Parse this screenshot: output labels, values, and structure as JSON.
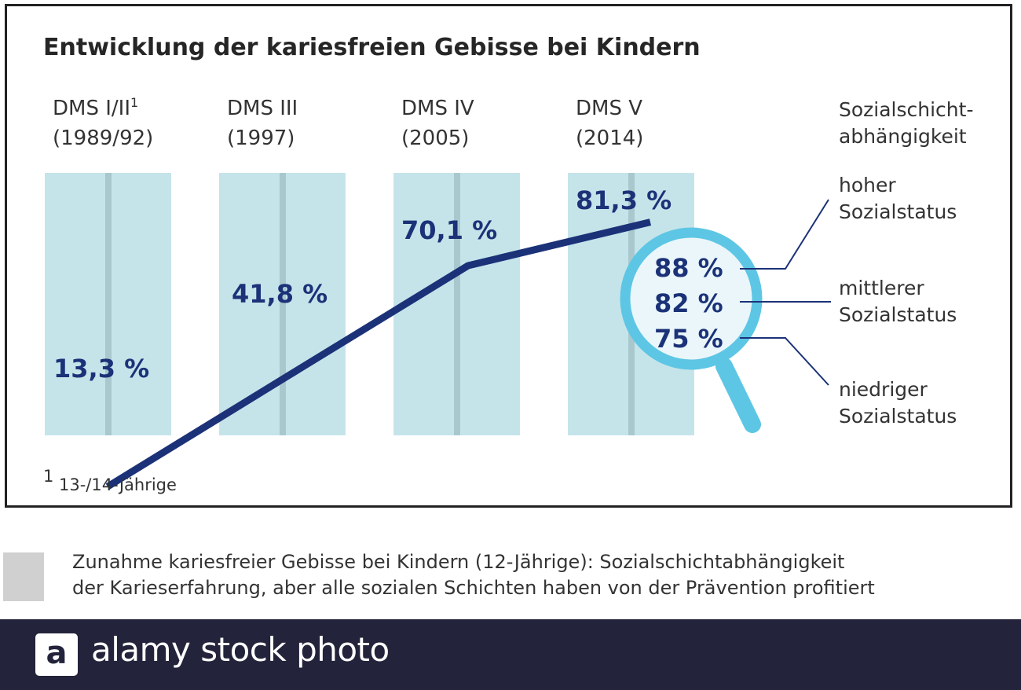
{
  "chart_data": {
    "type": "line",
    "title": "Entwicklung der kariesfreien Gebisse bei Kindern",
    "categories": [
      {
        "line1": "DMS I/II",
        "sup": "1",
        "line2": "(1989/92)"
      },
      {
        "line1": "DMS III",
        "sup": "",
        "line2": "(1997)"
      },
      {
        "line1": "DMS IV",
        "sup": "",
        "line2": "(2005)"
      },
      {
        "line1": "DMS V",
        "sup": "",
        "line2": "(2014)"
      }
    ],
    "values": [
      13.3,
      41.8,
      70.1,
      81.3
    ],
    "value_labels": [
      "13,3 %",
      "41,8 %",
      "70,1 %",
      "81,3 %"
    ],
    "ylim": [
      0,
      100
    ],
    "breakdown": {
      "header": [
        "Sozialschicht-",
        "abhängigkeit"
      ],
      "items": [
        {
          "value": 88,
          "value_label": "88 %",
          "label": [
            "hoher",
            "Sozialstatus"
          ]
        },
        {
          "value": 82,
          "value_label": "82 %",
          "label": [
            "mittlerer",
            "Sozialstatus"
          ]
        },
        {
          "value": 75,
          "value_label": "75 %",
          "label": [
            "niedriger",
            "Sozialstatus"
          ]
        }
      ]
    },
    "footnote": {
      "mark": "1",
      "text": "13-/14-Jährige"
    },
    "colors": {
      "column": "#c5e4ea",
      "column_stripe": "#a9c8ce",
      "line": "#1b3278",
      "magnifier_ring": "#5dc6e4",
      "magnifier_fill": "#eaf6fa"
    }
  },
  "caption": {
    "lines": [
      "Zunahme kariesfreier Gebisse bei Kindern (12-Jährige): Sozialschichtabhängigkeit",
      "der Karieserfahrung, aber alle sozialen Schichten haben von der Prävention profitiert"
    ]
  },
  "footer": {
    "logo_letter": "a",
    "text": "alamy stock photo"
  }
}
